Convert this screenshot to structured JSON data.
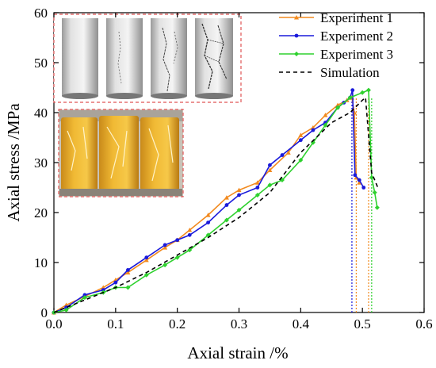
{
  "chart_data": {
    "type": "line",
    "xlabel": "Axial strain /%",
    "ylabel": "Axial stress /MPa",
    "xlim": [
      0.0,
      0.6
    ],
    "ylim": [
      0,
      60
    ],
    "xticks": [
      "0.0",
      "0.1",
      "0.2",
      "0.3",
      "0.4",
      "0.5",
      "0.6"
    ],
    "yticks": [
      "0",
      "10",
      "20",
      "30",
      "40",
      "50",
      "60"
    ],
    "legend_position": "top-right",
    "grid": false,
    "series": [
      {
        "name": "Experiment 1",
        "color": "#f28a1f",
        "marker": "triangle",
        "dashed": false,
        "x": [
          0.0,
          0.02,
          0.05,
          0.08,
          0.1,
          0.12,
          0.15,
          0.18,
          0.2,
          0.22,
          0.25,
          0.28,
          0.3,
          0.33,
          0.35,
          0.38,
          0.4,
          0.42,
          0.44,
          0.46,
          0.475,
          0.483,
          0.487,
          0.49,
          0.495
        ],
        "y": [
          0,
          1.5,
          3.2,
          5.0,
          6.5,
          8.0,
          10.5,
          13.0,
          14.5,
          16.5,
          19.5,
          23.0,
          24.5,
          26.0,
          28.5,
          32.0,
          35.5,
          37.0,
          39.5,
          41.5,
          42.5,
          43.0,
          40.0,
          27.0,
          26.0
        ]
      },
      {
        "name": "Experiment 2",
        "color": "#1a1adb",
        "marker": "circle",
        "dashed": false,
        "x": [
          0.0,
          0.02,
          0.05,
          0.08,
          0.1,
          0.12,
          0.15,
          0.18,
          0.2,
          0.22,
          0.25,
          0.28,
          0.3,
          0.33,
          0.35,
          0.37,
          0.4,
          0.42,
          0.44,
          0.46,
          0.47,
          0.48,
          0.484,
          0.488,
          0.495,
          0.502
        ],
        "y": [
          0,
          1.0,
          3.5,
          4.5,
          6.0,
          8.5,
          11.0,
          13.5,
          14.5,
          15.5,
          18.0,
          21.5,
          23.5,
          25.0,
          29.5,
          31.5,
          34.5,
          36.5,
          38.0,
          41.0,
          42.0,
          43.0,
          44.5,
          27.5,
          26.5,
          25.0
        ]
      },
      {
        "name": "Experiment 3",
        "color": "#2ed12e",
        "marker": "diamond",
        "dashed": false,
        "x": [
          0.0,
          0.02,
          0.05,
          0.08,
          0.1,
          0.12,
          0.15,
          0.18,
          0.2,
          0.22,
          0.25,
          0.28,
          0.3,
          0.33,
          0.35,
          0.37,
          0.4,
          0.42,
          0.44,
          0.46,
          0.48,
          0.5,
          0.51,
          0.515,
          0.52,
          0.524
        ],
        "y": [
          0,
          0.5,
          3.0,
          4.0,
          5.0,
          5.0,
          7.5,
          9.5,
          11.0,
          12.5,
          15.5,
          18.5,
          20.5,
          23.5,
          25.5,
          26.5,
          30.5,
          34.0,
          37.5,
          41.0,
          43.0,
          44.0,
          44.5,
          27.0,
          24.0,
          21.0
        ]
      },
      {
        "name": "Simulation",
        "color": "#000000",
        "marker": "none",
        "dashed": true,
        "x": [
          0.0,
          0.05,
          0.1,
          0.15,
          0.2,
          0.25,
          0.3,
          0.35,
          0.4,
          0.45,
          0.48,
          0.5,
          0.505,
          0.515,
          0.525
        ],
        "y": [
          0,
          2.5,
          5.0,
          8.0,
          11.5,
          15.0,
          19.0,
          24.0,
          32.0,
          38.0,
          40.0,
          42.5,
          43.0,
          28.0,
          25.0
        ]
      }
    ],
    "reference_lines": [
      {
        "x": 0.483,
        "color": "#1a1adb"
      },
      {
        "x": 0.49,
        "color": "#f28a1f"
      },
      {
        "x": 0.51,
        "color": "#f28a1f"
      },
      {
        "x": 0.515,
        "color": "#2ed12e"
      }
    ],
    "insets": [
      {
        "description_icon": "simulated-specimen-crack-images-icon",
        "border_color": "#e05555"
      },
      {
        "description_icon": "specimen-photo-icon",
        "border_color": "#e05555"
      }
    ]
  }
}
